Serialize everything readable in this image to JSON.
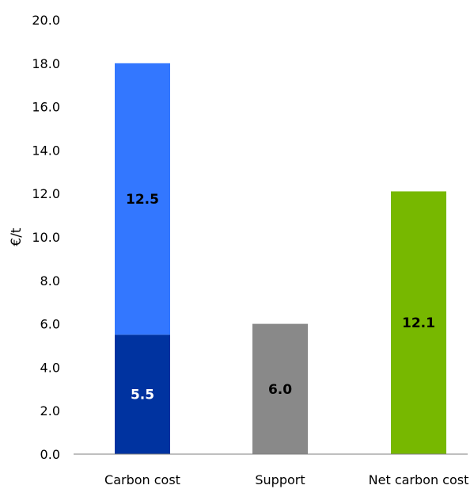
{
  "chart_data": {
    "type": "bar",
    "stacked": true,
    "categories": [
      "Carbon cost",
      "Support",
      "Net carbon cost"
    ],
    "ylabel": "€/t",
    "ylim": [
      0,
      20
    ],
    "yticks": [
      "0.0",
      "2.0",
      "4.0",
      "6.0",
      "8.0",
      "10.0",
      "12.0",
      "14.0",
      "16.0",
      "18.0",
      "20.0"
    ],
    "grid": false,
    "legend": "none",
    "segments": [
      {
        "category": "Carbon cost",
        "base": 0,
        "value": 5.5,
        "label": "5.5",
        "color": "#0033a0",
        "label_color": "#ffffff"
      },
      {
        "category": "Carbon cost",
        "base": 5.5,
        "value": 12.5,
        "label": "12.5",
        "color": "#3377ff",
        "label_color": "#000000"
      },
      {
        "category": "Support",
        "base": 0,
        "value": 6.0,
        "label": "6.0",
        "color": "#898989",
        "label_color": "#000000"
      },
      {
        "category": "Net carbon cost",
        "base": 0,
        "value": 12.1,
        "label": "12.1",
        "color": "#77b800",
        "label_color": "#000000"
      }
    ]
  }
}
